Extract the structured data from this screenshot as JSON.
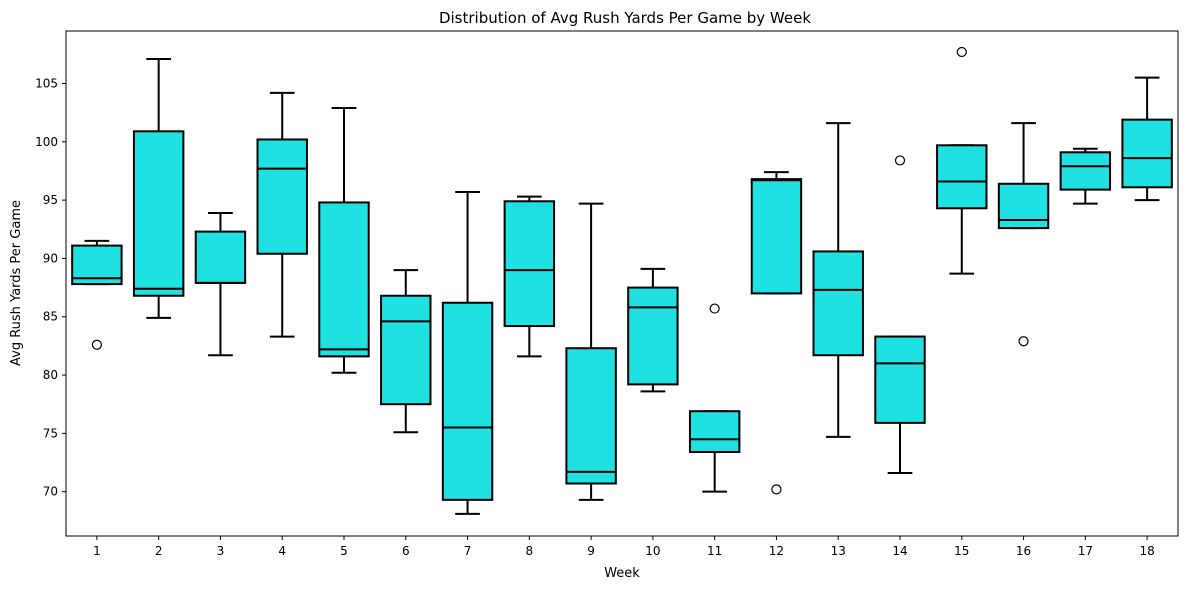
{
  "chart_data": {
    "type": "box",
    "title": "Distribution of Avg Rush Yards Per Game by Week",
    "xlabel": "Week",
    "ylabel": "Avg Rush Yards Per Game",
    "ylim": [
      66.2,
      109.5
    ],
    "yticks": [
      70,
      75,
      80,
      85,
      90,
      95,
      100,
      105
    ],
    "box_color": "#1fe1e1",
    "grid": false,
    "categories": [
      "1",
      "2",
      "3",
      "4",
      "5",
      "6",
      "7",
      "8",
      "9",
      "10",
      "11",
      "12",
      "13",
      "14",
      "15",
      "16",
      "17",
      "18"
    ],
    "boxes": [
      {
        "min": 87.8,
        "q1": 87.8,
        "median": 88.3,
        "q3": 91.1,
        "max": 91.5,
        "outliers": [
          82.6
        ]
      },
      {
        "min": 84.9,
        "q1": 86.8,
        "median": 87.4,
        "q3": 100.9,
        "max": 107.1,
        "outliers": []
      },
      {
        "min": 81.7,
        "q1": 87.9,
        "median": 87.9,
        "q3": 92.3,
        "max": 93.9,
        "outliers": []
      },
      {
        "min": 83.3,
        "q1": 90.4,
        "median": 97.7,
        "q3": 100.2,
        "max": 104.2,
        "outliers": []
      },
      {
        "min": 80.2,
        "q1": 81.6,
        "median": 82.2,
        "q3": 94.8,
        "max": 102.9,
        "outliers": []
      },
      {
        "min": 75.1,
        "q1": 77.5,
        "median": 84.6,
        "q3": 86.8,
        "max": 89.0,
        "outliers": []
      },
      {
        "min": 68.1,
        "q1": 69.3,
        "median": 75.5,
        "q3": 86.2,
        "max": 95.7,
        "outliers": []
      },
      {
        "min": 81.6,
        "q1": 84.2,
        "median": 89.0,
        "q3": 94.9,
        "max": 95.3,
        "outliers": []
      },
      {
        "min": 69.3,
        "q1": 70.7,
        "median": 71.7,
        "q3": 82.3,
        "max": 94.7,
        "outliers": []
      },
      {
        "min": 78.6,
        "q1": 79.2,
        "median": 85.8,
        "q3": 87.5,
        "max": 89.1,
        "outliers": []
      },
      {
        "min": 70.0,
        "q1": 73.4,
        "median": 74.5,
        "q3": 76.9,
        "max": 76.9,
        "outliers": [
          85.7
        ]
      },
      {
        "min": 87.0,
        "q1": 87.0,
        "median": 96.7,
        "q3": 96.8,
        "max": 97.4,
        "outliers": [
          70.2
        ]
      },
      {
        "min": 74.7,
        "q1": 81.7,
        "median": 87.3,
        "q3": 90.6,
        "max": 101.6,
        "outliers": []
      },
      {
        "min": 71.6,
        "q1": 75.9,
        "median": 81.0,
        "q3": 83.3,
        "max": 83.3,
        "outliers": [
          98.4
        ]
      },
      {
        "min": 88.7,
        "q1": 94.3,
        "median": 96.6,
        "q3": 99.7,
        "max": 99.7,
        "outliers": [
          107.7
        ]
      },
      {
        "min": 92.6,
        "q1": 92.6,
        "median": 93.3,
        "q3": 96.4,
        "max": 101.6,
        "outliers": [
          82.9
        ]
      },
      {
        "min": 94.7,
        "q1": 95.9,
        "median": 97.9,
        "q3": 99.1,
        "max": 99.4,
        "outliers": []
      },
      {
        "min": 95.0,
        "q1": 96.1,
        "median": 98.6,
        "q3": 101.9,
        "max": 105.5,
        "outliers": []
      }
    ]
  }
}
